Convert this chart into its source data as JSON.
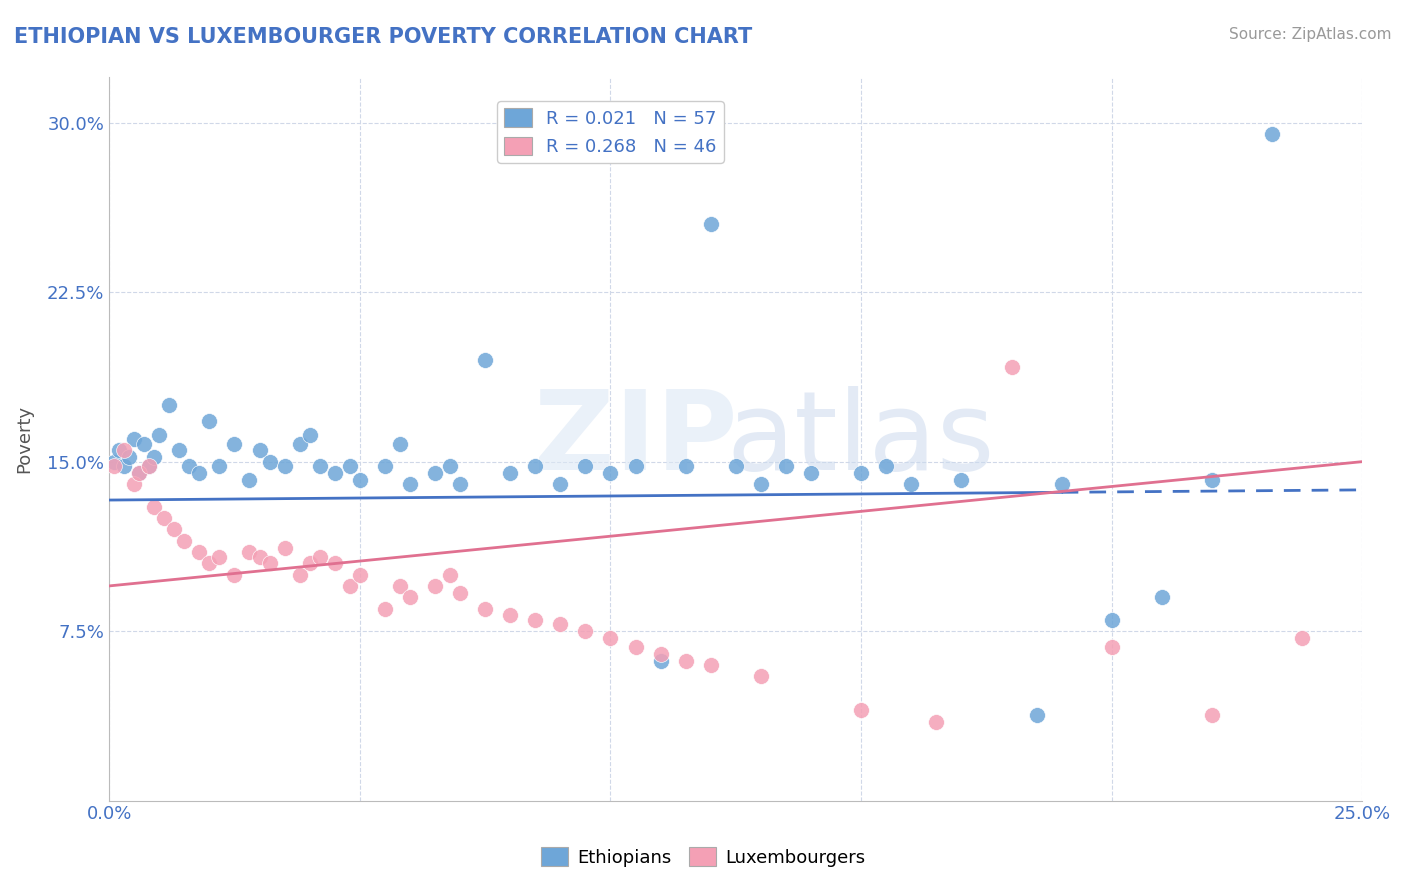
{
  "title": "ETHIOPIAN VS LUXEMBOURGER POVERTY CORRELATION CHART",
  "source": "Source: ZipAtlas.com",
  "ylabel": "Poverty",
  "xlim": [
    0.0,
    0.25
  ],
  "ylim": [
    0.0,
    0.32
  ],
  "legend_r1": "R = 0.021   N = 57",
  "legend_r2": "R = 0.268   N = 46",
  "legend_label1": "Ethiopians",
  "legend_label2": "Luxembourgers",
  "blue_color": "#6ea6d8",
  "pink_color": "#f4a0b5",
  "blue_line_color": "#4472c4",
  "pink_line_color": "#e07090",
  "background_color": "#ffffff",
  "grid_color": "#d0d8e8",
  "ethiopian_x": [
    0.001,
    0.002,
    0.003,
    0.004,
    0.005,
    0.006,
    0.007,
    0.008,
    0.009,
    0.01,
    0.012,
    0.014,
    0.016,
    0.018,
    0.02,
    0.022,
    0.025,
    0.028,
    0.03,
    0.032,
    0.035,
    0.038,
    0.04,
    0.042,
    0.045,
    0.048,
    0.05,
    0.055,
    0.058,
    0.06,
    0.065,
    0.068,
    0.07,
    0.075,
    0.08,
    0.085,
    0.09,
    0.095,
    0.1,
    0.105,
    0.11,
    0.115,
    0.12,
    0.125,
    0.13,
    0.135,
    0.14,
    0.15,
    0.155,
    0.16,
    0.17,
    0.185,
    0.19,
    0.2,
    0.21,
    0.22,
    0.232
  ],
  "ethiopian_y": [
    0.15,
    0.155,
    0.148,
    0.152,
    0.16,
    0.145,
    0.158,
    0.148,
    0.152,
    0.162,
    0.175,
    0.155,
    0.148,
    0.145,
    0.168,
    0.148,
    0.158,
    0.142,
    0.155,
    0.15,
    0.148,
    0.158,
    0.162,
    0.148,
    0.145,
    0.148,
    0.142,
    0.148,
    0.158,
    0.14,
    0.145,
    0.148,
    0.14,
    0.195,
    0.145,
    0.148,
    0.14,
    0.148,
    0.145,
    0.148,
    0.062,
    0.148,
    0.255,
    0.148,
    0.14,
    0.148,
    0.145,
    0.145,
    0.148,
    0.14,
    0.142,
    0.038,
    0.14,
    0.08,
    0.09,
    0.142,
    0.295
  ],
  "luxembourger_x": [
    0.001,
    0.003,
    0.005,
    0.006,
    0.008,
    0.009,
    0.011,
    0.013,
    0.015,
    0.018,
    0.02,
    0.022,
    0.025,
    0.028,
    0.03,
    0.032,
    0.035,
    0.038,
    0.04,
    0.042,
    0.045,
    0.048,
    0.05,
    0.055,
    0.058,
    0.06,
    0.065,
    0.068,
    0.07,
    0.075,
    0.08,
    0.085,
    0.09,
    0.095,
    0.1,
    0.105,
    0.11,
    0.115,
    0.12,
    0.13,
    0.15,
    0.165,
    0.18,
    0.2,
    0.22,
    0.238
  ],
  "luxembourger_y": [
    0.148,
    0.155,
    0.14,
    0.145,
    0.148,
    0.13,
    0.125,
    0.12,
    0.115,
    0.11,
    0.105,
    0.108,
    0.1,
    0.11,
    0.108,
    0.105,
    0.112,
    0.1,
    0.105,
    0.108,
    0.105,
    0.095,
    0.1,
    0.085,
    0.095,
    0.09,
    0.095,
    0.1,
    0.092,
    0.085,
    0.082,
    0.08,
    0.078,
    0.075,
    0.072,
    0.068,
    0.065,
    0.062,
    0.06,
    0.055,
    0.04,
    0.035,
    0.192,
    0.068,
    0.038,
    0.072
  ]
}
